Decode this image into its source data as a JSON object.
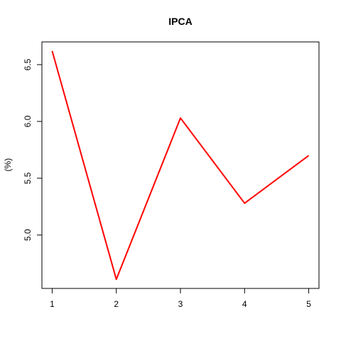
{
  "chart_data": {
    "type": "line",
    "title": "IPCA",
    "xlabel": "",
    "ylabel": "(%)",
    "x": [
      1,
      2,
      3,
      4,
      5
    ],
    "series": [
      {
        "values": [
          6.62,
          4.61,
          6.03,
          5.28,
          5.7
        ],
        "color": "#ff0000"
      }
    ],
    "xticks": [
      "1",
      "2",
      "3",
      "4",
      "5"
    ],
    "yticks": [
      "5.0",
      "5.5",
      "6.0",
      "6.5"
    ],
    "xlim": [
      0.84,
      5.16
    ],
    "ylim": [
      4.53,
      6.7
    ],
    "grid": false,
    "legend": "none"
  }
}
